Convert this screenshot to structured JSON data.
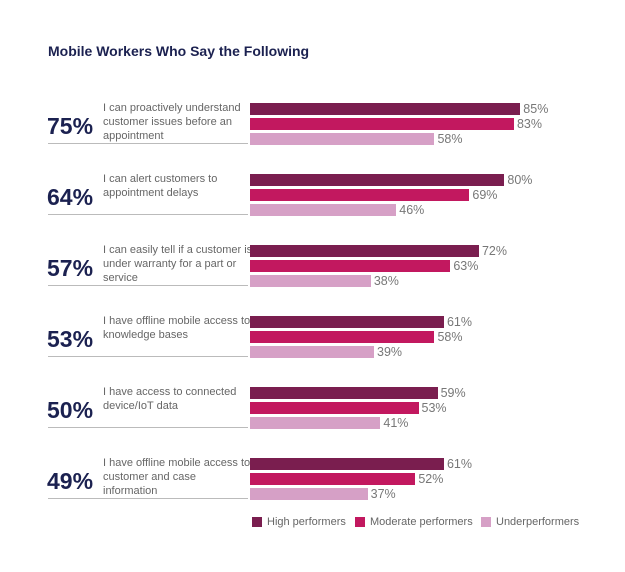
{
  "chart_data": {
    "type": "bar",
    "orientation": "horizontal",
    "title": "Mobile Workers Who Say the Following",
    "categories": [
      "I can proactively understand customer issues before an appointment",
      "I can alert customers to appointment delays",
      "I can easily tell if a customer is under warranty for a part or service",
      "I have offline mobile access to knowledge bases",
      "I have access to connected device/IoT data",
      "I have offline mobile access to customer and case information"
    ],
    "overall_values": [
      75,
      64,
      57,
      53,
      50,
      49
    ],
    "overall_value_labels": [
      "75%",
      "64%",
      "57%",
      "53%",
      "50%",
      "49%"
    ],
    "series": [
      {
        "name": "High performers",
        "color": "#7a1e4f",
        "values": [
          85,
          80,
          72,
          61,
          59,
          61
        ],
        "value_labels": [
          "85%",
          "80%",
          "72%",
          "61%",
          "59%",
          "61%"
        ]
      },
      {
        "name": "Moderate performers",
        "color": "#c2185f",
        "values": [
          83,
          69,
          63,
          58,
          53,
          52
        ],
        "value_labels": [
          "83%",
          "69%",
          "63%",
          "58%",
          "53%",
          "52%"
        ]
      },
      {
        "name": "Underperformers",
        "color": "#d6a0c6",
        "values": [
          58,
          46,
          38,
          39,
          41,
          37
        ],
        "value_labels": [
          "58%",
          "46%",
          "38%",
          "39%",
          "41%",
          "37%"
        ]
      }
    ],
    "legend": "bottom-right"
  }
}
